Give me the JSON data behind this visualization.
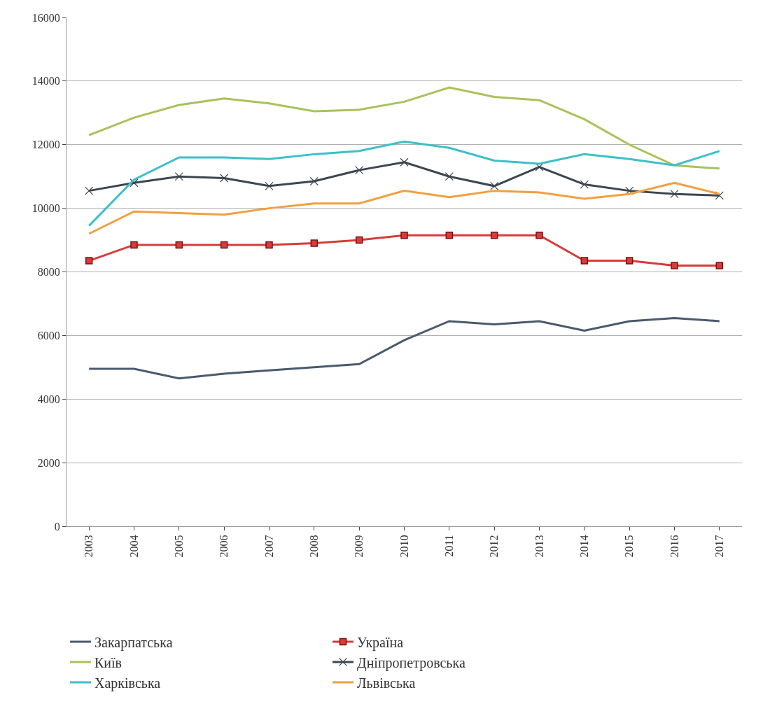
{
  "chart_data": {
    "type": "line",
    "categories": [
      "2003",
      "2004",
      "2005",
      "2006",
      "2007",
      "2008",
      "2009",
      "2010",
      "2011",
      "2012",
      "2013",
      "2014",
      "2015",
      "2016",
      "2017"
    ],
    "ylim": [
      0,
      16000
    ],
    "yticks": [
      0,
      2000,
      4000,
      6000,
      8000,
      10000,
      12000,
      14000,
      16000
    ],
    "grid": "y",
    "legend": "bottom",
    "line_style": "solid",
    "series": [
      {
        "name": "Закарпатська",
        "color": "#4a5a6e",
        "marker": "none",
        "values": [
          4950,
          4950,
          4650,
          4800,
          4900,
          5000,
          5100,
          5850,
          6450,
          6350,
          6450,
          6150,
          6450,
          6550,
          6450
        ]
      },
      {
        "name": "Україна",
        "color": "#d93a3a",
        "marker": "square",
        "values": [
          8350,
          8850,
          8850,
          8850,
          8850,
          8900,
          9000,
          9150,
          9150,
          9150,
          9150,
          8350,
          8350,
          8200,
          8200
        ]
      },
      {
        "name": "Київ",
        "color": "#a8c25a",
        "marker": "none",
        "values": [
          12300,
          12850,
          13250,
          13450,
          13300,
          13050,
          13100,
          13350,
          13800,
          13500,
          13400,
          12800,
          12000,
          11350,
          11250
        ]
      },
      {
        "name": "Дніпропетровська",
        "color": "#3d4650",
        "marker": "cross",
        "values": [
          10550,
          10800,
          11000,
          10950,
          10700,
          10850,
          11200,
          11450,
          11000,
          10700,
          11300,
          10750,
          10550,
          10450,
          10400
        ]
      },
      {
        "name": "Харківська",
        "color": "#3cc0c8",
        "marker": "none",
        "values": [
          9450,
          10900,
          11600,
          11600,
          11550,
          11700,
          11800,
          12100,
          11900,
          11500,
          11400,
          11700,
          11550,
          11350,
          11800
        ]
      },
      {
        "name": "Львівська",
        "color": "#f0a040",
        "marker": "none",
        "values": [
          9200,
          9900,
          9850,
          9800,
          10000,
          10150,
          10150,
          10550,
          10350,
          10550,
          10500,
          10300,
          10450,
          10800,
          10450
        ]
      }
    ]
  }
}
